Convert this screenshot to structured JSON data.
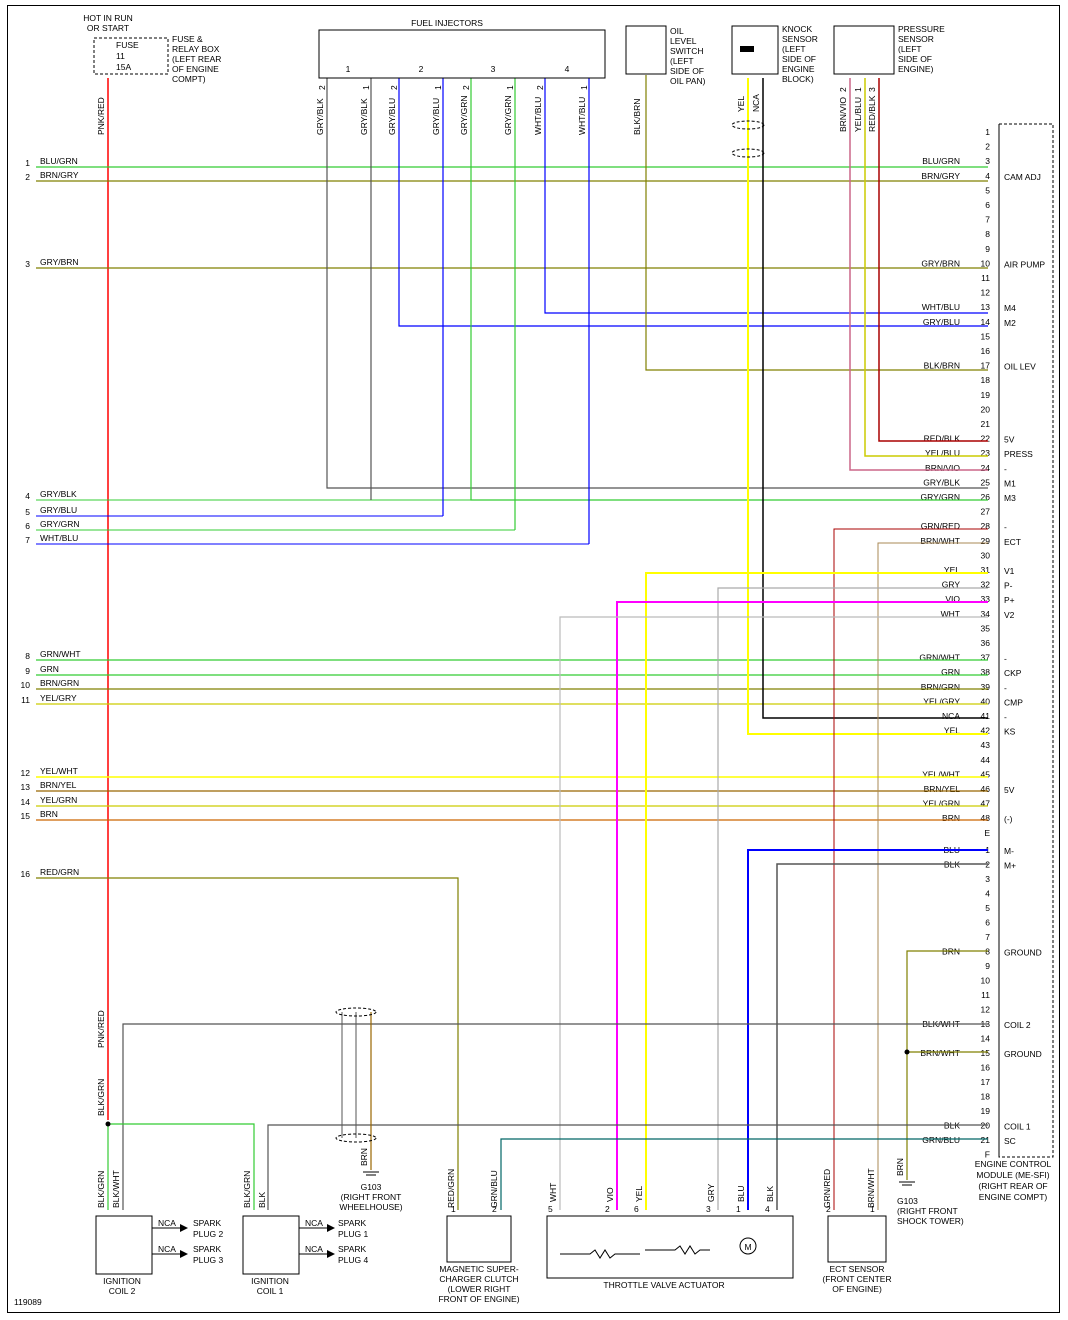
{
  "diagram_id": "119089",
  "power": {
    "header": [
      "HOT IN RUN",
      "OR START"
    ],
    "fuse": [
      "FUSE",
      "11",
      "15A"
    ],
    "box_label": [
      "FUSE &",
      "RELAY BOX",
      "(LEFT REAR",
      "OF ENGINE",
      "COMPT)"
    ],
    "wire": "PNK/RED"
  },
  "fuel_injectors": {
    "title": "FUEL INJECTORS",
    "numbers": [
      "1",
      "2",
      "3",
      "4"
    ],
    "wires": [
      {
        "label": "GRY/BLK",
        "pin": "2"
      },
      {
        "label": "GRY/BLK",
        "pin": "1"
      },
      {
        "label": "GRY/BLU",
        "pin": "2"
      },
      {
        "label": "GRY/BLU",
        "pin": "1"
      },
      {
        "label": "GRY/GRN",
        "pin": "2"
      },
      {
        "label": "GRY/GRN",
        "pin": "1"
      },
      {
        "label": "WHT/BLU",
        "pin": "2"
      },
      {
        "label": "WHT/BLU",
        "pin": "1"
      }
    ]
  },
  "oil_switch": {
    "label": [
      "OIL",
      "LEVEL",
      "SWITCH",
      "(LEFT",
      "SIDE OF",
      "OIL PAN)"
    ],
    "wire": "BLK/BRN"
  },
  "knock_sensor": {
    "label": [
      "KNOCK",
      "SENSOR",
      "(LEFT",
      "SIDE OF",
      "ENGINE",
      "BLOCK)"
    ],
    "wires": [
      "YEL",
      "NCA"
    ]
  },
  "pressure_sensor": {
    "label": [
      "PRESSURE",
      "SENSOR",
      "(LEFT",
      "SIDE OF",
      "ENGINE)"
    ],
    "wires": [
      {
        "label": "BRN/VIO",
        "pin": "2"
      },
      {
        "label": "YEL/BLU",
        "pin": "1"
      },
      {
        "label": "RED/BLK",
        "pin": "3"
      }
    ]
  },
  "left_circuits": [
    {
      "n": "1",
      "label": "BLU/GRN"
    },
    {
      "n": "2",
      "label": "BRN/GRY"
    },
    {
      "n": "3",
      "label": "GRY/BRN"
    },
    {
      "n": "4",
      "label": "GRY/BLK"
    },
    {
      "n": "5",
      "label": "GRY/BLU"
    },
    {
      "n": "6",
      "label": "GRY/GRN"
    },
    {
      "n": "7",
      "label": "WHT/BLU"
    },
    {
      "n": "8",
      "label": "GRN/WHT"
    },
    {
      "n": "9",
      "label": "GRN"
    },
    {
      "n": "10",
      "label": "BRN/GRN"
    },
    {
      "n": "11",
      "label": "YEL/GRY"
    },
    {
      "n": "12",
      "label": "YEL/WHT"
    },
    {
      "n": "13",
      "label": "BRN/YEL"
    },
    {
      "n": "14",
      "label": "YEL/GRN"
    },
    {
      "n": "15",
      "label": "BRN"
    },
    {
      "n": "16",
      "label": "RED/GRN"
    }
  ],
  "ecm_top_pins": [
    {
      "pin": "1",
      "wire": "",
      "func": ""
    },
    {
      "pin": "2",
      "wire": "",
      "func": ""
    },
    {
      "pin": "3",
      "wire": "BLU/GRN",
      "func": ""
    },
    {
      "pin": "4",
      "wire": "BRN/GRY",
      "func": "CAM ADJ"
    },
    {
      "pin": "5",
      "wire": "",
      "func": ""
    },
    {
      "pin": "6",
      "wire": "",
      "func": ""
    },
    {
      "pin": "7",
      "wire": "",
      "func": ""
    },
    {
      "pin": "8",
      "wire": "",
      "func": ""
    },
    {
      "pin": "9",
      "wire": "",
      "func": ""
    },
    {
      "pin": "10",
      "wire": "GRY/BRN",
      "func": "AIR PUMP"
    },
    {
      "pin": "11",
      "wire": "",
      "func": ""
    },
    {
      "pin": "12",
      "wire": "",
      "func": ""
    },
    {
      "pin": "13",
      "wire": "WHT/BLU",
      "func": "M4"
    },
    {
      "pin": "14",
      "wire": "GRY/BLU",
      "func": "M2"
    },
    {
      "pin": "15",
      "wire": "",
      "func": ""
    },
    {
      "pin": "16",
      "wire": "",
      "func": ""
    },
    {
      "pin": "17",
      "wire": "BLK/BRN",
      "func": "OIL LEV"
    },
    {
      "pin": "18",
      "wire": "",
      "func": ""
    },
    {
      "pin": "19",
      "wire": "",
      "func": ""
    },
    {
      "pin": "20",
      "wire": "",
      "func": ""
    },
    {
      "pin": "21",
      "wire": "",
      "func": ""
    },
    {
      "pin": "22",
      "wire": "RED/BLK",
      "func": "5V"
    },
    {
      "pin": "23",
      "wire": "YEL/BLU",
      "func": "PRESS"
    },
    {
      "pin": "24",
      "wire": "BRN/VIO",
      "func": "-"
    },
    {
      "pin": "25",
      "wire": "GRY/BLK",
      "func": "M1"
    },
    {
      "pin": "26",
      "wire": "GRY/GRN",
      "func": "M3"
    },
    {
      "pin": "27",
      "wire": "",
      "func": ""
    },
    {
      "pin": "28",
      "wire": "GRN/RED",
      "func": "-"
    },
    {
      "pin": "29",
      "wire": "BRN/WHT",
      "func": "ECT"
    },
    {
      "pin": "30",
      "wire": "",
      "func": ""
    },
    {
      "pin": "31",
      "wire": "YEL",
      "func": "V1"
    },
    {
      "pin": "32",
      "wire": "GRY",
      "func": "P-"
    },
    {
      "pin": "33",
      "wire": "VIO",
      "func": "P+"
    },
    {
      "pin": "34",
      "wire": "WHT",
      "func": "V2"
    },
    {
      "pin": "35",
      "wire": "",
      "func": ""
    },
    {
      "pin": "36",
      "wire": "",
      "func": ""
    },
    {
      "pin": "37",
      "wire": "GRN/WHT",
      "func": "-"
    },
    {
      "pin": "38",
      "wire": "GRN",
      "func": "CKP"
    },
    {
      "pin": "39",
      "wire": "BRN/GRN",
      "func": "-"
    },
    {
      "pin": "40",
      "wire": "YEL/GRY",
      "func": "CMP"
    },
    {
      "pin": "41",
      "wire": "NCA",
      "func": "-"
    },
    {
      "pin": "42",
      "wire": "YEL",
      "func": "KS"
    },
    {
      "pin": "43",
      "wire": "",
      "func": ""
    },
    {
      "pin": "44",
      "wire": "",
      "func": ""
    },
    {
      "pin": "45",
      "wire": "YEL/WHT",
      "func": ""
    },
    {
      "pin": "46",
      "wire": "BRN/YEL",
      "func": "5V"
    },
    {
      "pin": "47",
      "wire": "YEL/GRN",
      "func": ""
    },
    {
      "pin": "48",
      "wire": "BRN",
      "func": "(-)"
    },
    {
      "pin": "E",
      "wire": "",
      "func": ""
    }
  ],
  "ecm_bottom_pins": [
    {
      "pin": "1",
      "wire": "BLU",
      "func": "M-"
    },
    {
      "pin": "2",
      "wire": "BLK",
      "func": "M+"
    },
    {
      "pin": "3",
      "wire": "",
      "func": ""
    },
    {
      "pin": "4",
      "wire": "",
      "func": ""
    },
    {
      "pin": "5",
      "wire": "",
      "func": ""
    },
    {
      "pin": "6",
      "wire": "",
      "func": ""
    },
    {
      "pin": "7",
      "wire": "",
      "func": ""
    },
    {
      "pin": "8",
      "wire": "BRN",
      "func": "GROUND"
    },
    {
      "pin": "9",
      "wire": "",
      "func": ""
    },
    {
      "pin": "10",
      "wire": "",
      "func": ""
    },
    {
      "pin": "11",
      "wire": "",
      "func": ""
    },
    {
      "pin": "12",
      "wire": "",
      "func": ""
    },
    {
      "pin": "13",
      "wire": "BLK/WHT",
      "func": "COIL 2"
    },
    {
      "pin": "14",
      "wire": "",
      "func": ""
    },
    {
      "pin": "15",
      "wire": "BRN/WHT",
      "func": "GROUND"
    },
    {
      "pin": "16",
      "wire": "",
      "func": ""
    },
    {
      "pin": "17",
      "wire": "",
      "func": ""
    },
    {
      "pin": "18",
      "wire": "",
      "func": ""
    },
    {
      "pin": "19",
      "wire": "",
      "func": ""
    },
    {
      "pin": "20",
      "wire": "BLK",
      "func": "COIL 1"
    },
    {
      "pin": "21",
      "wire": "GRN/BLU",
      "func": "SC"
    },
    {
      "pin": "F",
      "wire": "",
      "func": ""
    }
  ],
  "ecm": {
    "label": [
      "ENGINE CONTROL",
      "MODULE (ME-SFI)",
      "(RIGHT REAR OF",
      "ENGINE COMPT)"
    ]
  },
  "ignition_coil2": {
    "label": [
      "IGNITION",
      "COIL 2"
    ],
    "wires": [
      "BLK/GRN",
      "BLK/WHT"
    ],
    "outputs": [
      {
        "nca": "NCA",
        "plug": [
          "SPARK",
          "PLUG 2"
        ]
      },
      {
        "nca": "NCA",
        "plug": [
          "SPARK",
          "PLUG 3"
        ]
      }
    ]
  },
  "ignition_coil1": {
    "label": [
      "IGNITION",
      "COIL 1"
    ],
    "wires": [
      "BLK/GRN",
      "BLK"
    ],
    "outputs": [
      {
        "nca": "NCA",
        "plug": [
          "SPARK",
          "PLUG 1"
        ]
      },
      {
        "nca": "NCA",
        "plug": [
          "SPARK",
          "PLUG 4"
        ]
      }
    ]
  },
  "mid_wires": {
    "pnk_red": "PNK/RED",
    "blk_grn": "BLK/GRN"
  },
  "ground_g103_left": {
    "wire": "BRN",
    "label": [
      "G103",
      "(RIGHT FRONT",
      "WHEELHOUSE)"
    ]
  },
  "supercharger": {
    "label": [
      "MAGNETIC SUPER-",
      "CHARGER CLUTCH",
      "(LOWER RIGHT",
      "FRONT OF ENGINE)"
    ],
    "wires": [
      {
        "label": "RED/GRN",
        "pin": "1"
      },
      {
        "label": "GRN/BLU",
        "pin": "2"
      }
    ]
  },
  "throttle": {
    "label": "THROTTLE VALVE ACTUATOR",
    "wires": [
      {
        "label": "WHT",
        "pin": "5"
      },
      {
        "label": "VIO",
        "pin": "2"
      },
      {
        "label": "YEL",
        "pin": "6"
      },
      {
        "label": "GRY",
        "pin": "3"
      },
      {
        "label": "BLU",
        "pin": "1"
      },
      {
        "label": "BLK",
        "pin": "4"
      }
    ],
    "motor": "M"
  },
  "ect_sensor": {
    "label": [
      "ECT SENSOR",
      "(FRONT CENTER",
      "OF ENGINE)"
    ],
    "wires": [
      {
        "label": "GRN/RED",
        "pin": "2"
      },
      {
        "label": "BRN/WHT",
        "pin": "1"
      }
    ]
  },
  "ground_g103_right": {
    "wire": "BRN",
    "label": [
      "G103",
      "(RIGHT FRONT",
      "SHOCK TOWER)"
    ]
  },
  "colors": {
    "red": "#ff0000",
    "green": "#33cc33",
    "olive": "#808000",
    "blue": "#0000ff",
    "gray": "#555555",
    "yellow": "#ffff00",
    "magenta": "#ff00ff",
    "black": "#000000",
    "brown": "#996600",
    "orange": "#cc6600",
    "lightgray": "#aaaaaa",
    "darkred": "#aa0000"
  }
}
